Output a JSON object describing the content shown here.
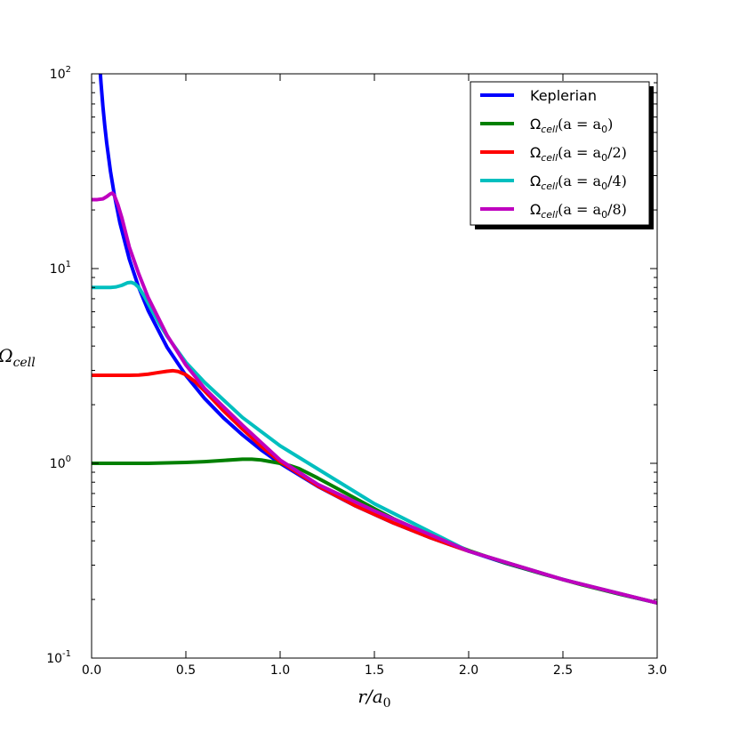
{
  "chart_data": {
    "type": "line",
    "title": "",
    "xlabel": "r/a",
    "xlabel_sub": "0",
    "ylabel": "Ω",
    "ylabel_sub": "cell",
    "xlim": [
      0.0,
      3.0
    ],
    "ylim": [
      0.1,
      100
    ],
    "yscale": "log",
    "grid": false,
    "legend_position": "top-right",
    "x_ticks": [
      {
        "value": 0.0,
        "label": "0.0"
      },
      {
        "value": 0.5,
        "label": "0.5"
      },
      {
        "value": 1.0,
        "label": "1.0"
      },
      {
        "value": 1.5,
        "label": "1.5"
      },
      {
        "value": 2.0,
        "label": "2.0"
      },
      {
        "value": 2.5,
        "label": "2.5"
      },
      {
        "value": 3.0,
        "label": "3.0"
      }
    ],
    "y_ticks": [
      {
        "value": 0.1,
        "base": "10",
        "exp": "-1"
      },
      {
        "value": 1,
        "base": "10",
        "exp": "0"
      },
      {
        "value": 10,
        "base": "10",
        "exp": "1"
      },
      {
        "value": 100,
        "base": "10",
        "exp": "2"
      }
    ],
    "series": [
      {
        "name": "Keplerian",
        "color": "#0000ff",
        "x": [
          0.045,
          0.05,
          0.06,
          0.07,
          0.08,
          0.1,
          0.12,
          0.15,
          0.2,
          0.25,
          0.3,
          0.4,
          0.5,
          0.6,
          0.7,
          0.8,
          0.9,
          1.0,
          1.2,
          1.4,
          1.6,
          1.8,
          2.0,
          2.2,
          2.4,
          2.6,
          2.8,
          3.0
        ],
        "y": [
          104.8,
          89.4,
          68.0,
          54.0,
          44.2,
          31.6,
          24.1,
          17.2,
          11.18,
          8.0,
          6.09,
          3.95,
          2.83,
          2.15,
          1.71,
          1.4,
          1.17,
          1.0,
          0.761,
          0.604,
          0.494,
          0.414,
          0.354,
          0.306,
          0.269,
          0.239,
          0.213,
          0.192
        ]
      },
      {
        "name": "cell",
        "label_parts": {
          "symbol": "Ω",
          "sub": "cell",
          "arg": "(a = a",
          "arg_sub": "0",
          "arg_tail": ")"
        },
        "color": "#008000",
        "x": [
          0.0,
          0.1,
          0.2,
          0.3,
          0.4,
          0.5,
          0.6,
          0.7,
          0.8,
          0.85,
          0.9,
          0.95,
          1.0,
          1.05,
          1.1,
          1.2,
          1.3,
          1.4,
          1.5,
          1.6,
          1.8,
          2.0,
          2.2,
          2.4,
          2.6,
          2.8,
          3.0
        ],
        "y": [
          1.0,
          1.0,
          1.0,
          1.0,
          1.005,
          1.01,
          1.02,
          1.035,
          1.05,
          1.05,
          1.04,
          1.02,
          1.0,
          0.975,
          0.94,
          0.84,
          0.745,
          0.66,
          0.585,
          0.52,
          0.425,
          0.357,
          0.307,
          0.269,
          0.238,
          0.213,
          0.192
        ]
      },
      {
        "name": "cell",
        "label_parts": {
          "symbol": "Ω",
          "sub": "cell",
          "arg": "(a = a",
          "arg_sub": "0",
          "arg_tail": "/2)"
        },
        "color": "#ff0000",
        "x": [
          0.0,
          0.1,
          0.2,
          0.25,
          0.3,
          0.35,
          0.4,
          0.43,
          0.46,
          0.5,
          0.55,
          0.6,
          0.7,
          0.8,
          0.9,
          1.0,
          1.2,
          1.4,
          1.6,
          1.8,
          2.0,
          2.5,
          3.0
        ],
        "y": [
          2.83,
          2.83,
          2.83,
          2.84,
          2.87,
          2.92,
          2.97,
          2.99,
          2.96,
          2.85,
          2.62,
          2.35,
          1.86,
          1.5,
          1.22,
          1.02,
          0.765,
          0.605,
          0.495,
          0.414,
          0.354,
          0.253,
          0.192
        ]
      },
      {
        "name": "cell",
        "label_parts": {
          "symbol": "Ω",
          "sub": "cell",
          "arg": "(a = a",
          "arg_sub": "0",
          "arg_tail": "/4)"
        },
        "color": "#00bfbf",
        "x": [
          0.0,
          0.05,
          0.1,
          0.13,
          0.16,
          0.19,
          0.21,
          0.23,
          0.25,
          0.28,
          0.32,
          0.36,
          0.4,
          0.5,
          0.6,
          0.8,
          1.0,
          1.5,
          2.0,
          2.5,
          3.0
        ],
        "y": [
          8.0,
          8.0,
          8.0,
          8.05,
          8.2,
          8.45,
          8.5,
          8.35,
          8.0,
          7.2,
          6.1,
          5.2,
          4.5,
          3.3,
          2.6,
          1.72,
          1.23,
          0.62,
          0.354,
          0.253,
          0.192
        ]
      },
      {
        "name": "cell",
        "label_parts": {
          "symbol": "Ω",
          "sub": "cell",
          "arg": "(a = a",
          "arg_sub": "0",
          "arg_tail": "/8)"
        },
        "color": "#bf00bf",
        "x": [
          0.0,
          0.03,
          0.06,
          0.08,
          0.1,
          0.11,
          0.12,
          0.14,
          0.16,
          0.2,
          0.25,
          0.3,
          0.4,
          0.5,
          0.6,
          0.8,
          1.0,
          1.2,
          1.5,
          2.0,
          2.5,
          3.0
        ],
        "y": [
          22.6,
          22.6,
          22.8,
          23.4,
          24.2,
          24.4,
          23.8,
          21.2,
          18.3,
          12.9,
          9.4,
          7.1,
          4.55,
          3.2,
          2.42,
          1.57,
          1.04,
          0.78,
          0.57,
          0.354,
          0.253,
          0.192
        ]
      }
    ]
  }
}
